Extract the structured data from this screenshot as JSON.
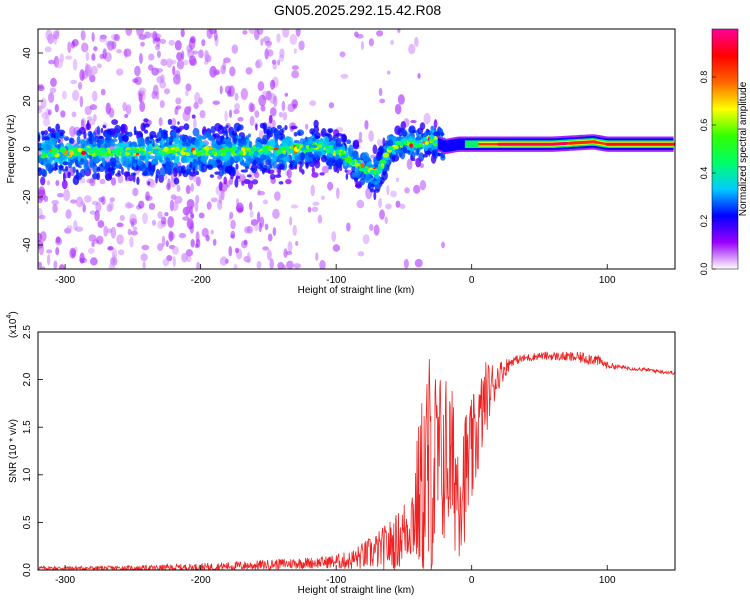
{
  "title": "GN05.2025.292.15.42.R08",
  "chart_data": [
    {
      "type": "heatmap",
      "xlabel": "Height of straight line (km)",
      "ylabel": "Frequency (Hz)",
      "xlim": [
        -320,
        150
      ],
      "ylim": [
        -50,
        50
      ],
      "x_ticks": [
        -300,
        -200,
        -100,
        0,
        100
      ],
      "y_ticks": [
        -40,
        -20,
        0,
        20,
        40
      ],
      "colorbar": {
        "label": "Normalized spectral amplitude",
        "range": [
          0,
          1
        ],
        "ticks": [
          0.0,
          0.2,
          0.4,
          0.6,
          0.8
        ],
        "colormap": [
          "#ffffff",
          "#9900ff",
          "#0000ff",
          "#00ccff",
          "#00ff66",
          "#33ff00",
          "#ffff00",
          "#ff6600",
          "#ff0000",
          "#ff0099"
        ]
      },
      "ridge": {
        "description_points_x": [
          -320,
          -280,
          -240,
          -200,
          -160,
          -130,
          -110,
          -95,
          -80,
          -70,
          -60,
          -50,
          -40,
          -30,
          -20,
          -10,
          0,
          20,
          60,
          90,
          100,
          150
        ],
        "description_points_y": [
          -2,
          -1,
          -1,
          -1,
          -1,
          0,
          1,
          -2,
          -8,
          -10,
          0,
          3,
          2,
          4,
          1,
          2,
          2,
          2,
          2,
          3,
          2,
          2
        ],
        "peak_intensity_x_start": 0,
        "peak_intensity_value": 0.95
      },
      "grid": false
    },
    {
      "type": "line",
      "xlabel": "Height of straight line (km)",
      "ylabel": "SNR (10 * v/v)",
      "exponent_label": "(x10",
      "exponent_sup": "4",
      "exponent_close": ")",
      "xlim": [
        -320,
        150
      ],
      "ylim": [
        0,
        2.5
      ],
      "x_ticks": [
        -300,
        -200,
        -100,
        0,
        100
      ],
      "y_ticks": [
        0.0,
        0.5,
        1.0,
        1.5,
        2.0,
        2.5
      ],
      "color": "#ee2222",
      "envelope": {
        "x": [
          -320,
          -280,
          -240,
          -200,
          -160,
          -130,
          -110,
          -90,
          -70,
          -55,
          -45,
          -38,
          -32,
          -25,
          -18,
          -10,
          -5,
          0,
          5,
          10,
          20,
          30,
          50,
          70,
          90,
          100,
          110,
          130,
          150
        ],
        "base": [
          0.02,
          0.02,
          0.02,
          0.03,
          0.05,
          0.07,
          0.08,
          0.1,
          0.2,
          0.3,
          0.5,
          0.8,
          1.0,
          1.1,
          1.2,
          0.9,
          1.0,
          1.2,
          1.5,
          1.8,
          2.05,
          2.2,
          2.25,
          2.24,
          2.22,
          2.15,
          2.13,
          2.1,
          2.07
        ],
        "amplitude": [
          0.02,
          0.02,
          0.03,
          0.04,
          0.05,
          0.06,
          0.06,
          0.1,
          0.2,
          0.3,
          0.4,
          0.9,
          1.4,
          1.0,
          0.9,
          0.8,
          0.7,
          0.6,
          0.5,
          0.4,
          0.15,
          0.05,
          0.04,
          0.05,
          0.07,
          0.04,
          0.02,
          0.02,
          0.02
        ]
      },
      "grid": false
    }
  ]
}
